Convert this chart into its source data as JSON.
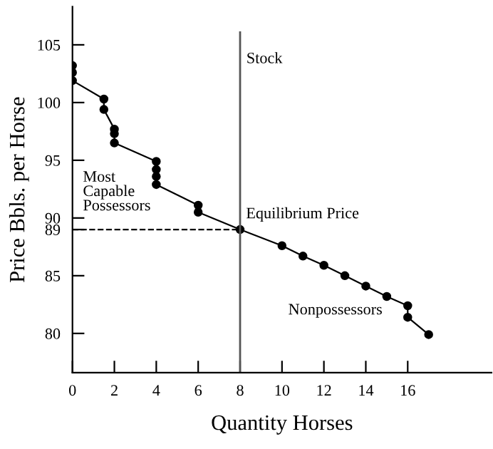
{
  "chart_data": {
    "type": "line",
    "xlabel": "Quantity Horses",
    "ylabel": "Price Bbls. per Horse",
    "series": [
      {
        "color": "#000000",
        "marker": "circle",
        "line_style": "solid",
        "x": [
          0,
          0,
          0,
          1.5,
          1.5,
          2,
          2,
          2,
          4,
          4,
          4,
          4,
          6,
          6,
          8,
          10,
          11,
          12,
          13,
          14,
          15,
          16,
          16,
          17
        ],
        "values": [
          103.2,
          102.6,
          101.9,
          100.3,
          99.4,
          97.7,
          97.3,
          96.5,
          94.9,
          94.2,
          93.6,
          92.9,
          91.1,
          90.5,
          89,
          87.6,
          86.7,
          85.9,
          85.0,
          84.1,
          83.2,
          82.4,
          81.4,
          79.9
        ]
      },
      {
        "type": "line",
        "color": "#000000",
        "marker": "none",
        "line_style": "dashed",
        "x": [
          0,
          8
        ],
        "values": [
          89,
          89
        ]
      }
    ],
    "ref_lines": [
      {
        "axis": "x",
        "value": 8,
        "label": "Stock",
        "color": "#555555"
      }
    ],
    "annotations": [
      {
        "text": "Equilibrium Price",
        "x": 8,
        "y": 89
      },
      "Most Capable Possessors",
      "Nonpossessors"
    ],
    "xlim": [
      0,
      20
    ],
    "ylim": [
      76.6,
      108.3
    ],
    "xticks": [
      0,
      2,
      4,
      6,
      8,
      10,
      12,
      14,
      16
    ],
    "yticks": [
      80,
      85,
      89,
      90,
      95,
      100,
      105
    ],
    "grid": false,
    "legend": false
  }
}
